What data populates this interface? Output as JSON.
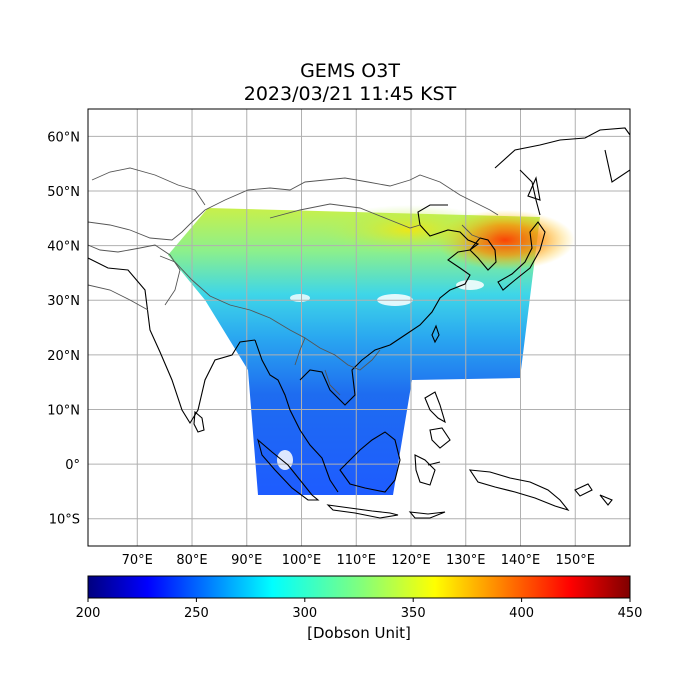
{
  "title": {
    "line1": "GEMS O3T",
    "line2": "2023/03/21 11:45 KST"
  },
  "map": {
    "lon_range": [
      61,
      160
    ],
    "lat_range": [
      -15,
      65
    ],
    "grid": true,
    "lon_ticks": [
      {
        "value": 70,
        "label": "70°E"
      },
      {
        "value": 80,
        "label": "80°E"
      },
      {
        "value": 90,
        "label": "90°E"
      },
      {
        "value": 100,
        "label": "100°E"
      },
      {
        "value": 110,
        "label": "110°E"
      },
      {
        "value": 120,
        "label": "120°E"
      },
      {
        "value": 130,
        "label": "130°E"
      },
      {
        "value": 140,
        "label": "140°E"
      },
      {
        "value": 150,
        "label": "150°E"
      }
    ],
    "lat_ticks": [
      {
        "value": 60,
        "label": "60°N"
      },
      {
        "value": 50,
        "label": "50°N"
      },
      {
        "value": 40,
        "label": "40°N"
      },
      {
        "value": 30,
        "label": "30°N"
      },
      {
        "value": 20,
        "label": "20°N"
      },
      {
        "value": 10,
        "label": "10°N"
      },
      {
        "value": 0,
        "label": "0°"
      },
      {
        "value": -10,
        "label": "10°S"
      }
    ]
  },
  "colorbar": {
    "min": 200,
    "max": 450,
    "colormap": "jet",
    "ticks": [
      {
        "value": 200,
        "label": "200"
      },
      {
        "value": 250,
        "label": "250"
      },
      {
        "value": 300,
        "label": "300"
      },
      {
        "value": 350,
        "label": "350"
      },
      {
        "value": 400,
        "label": "400"
      },
      {
        "value": 450,
        "label": "450"
      }
    ],
    "label": "[Dobson Unit]"
  },
  "colors": {
    "jet": [
      "#00007f",
      "#0000ff",
      "#007fff",
      "#00ffff",
      "#7fff7f",
      "#ffff00",
      "#ff7f00",
      "#ff0000",
      "#7f0000"
    ],
    "grid": "#b0b0b0",
    "coast": "#000000",
    "border": "#555555"
  }
}
